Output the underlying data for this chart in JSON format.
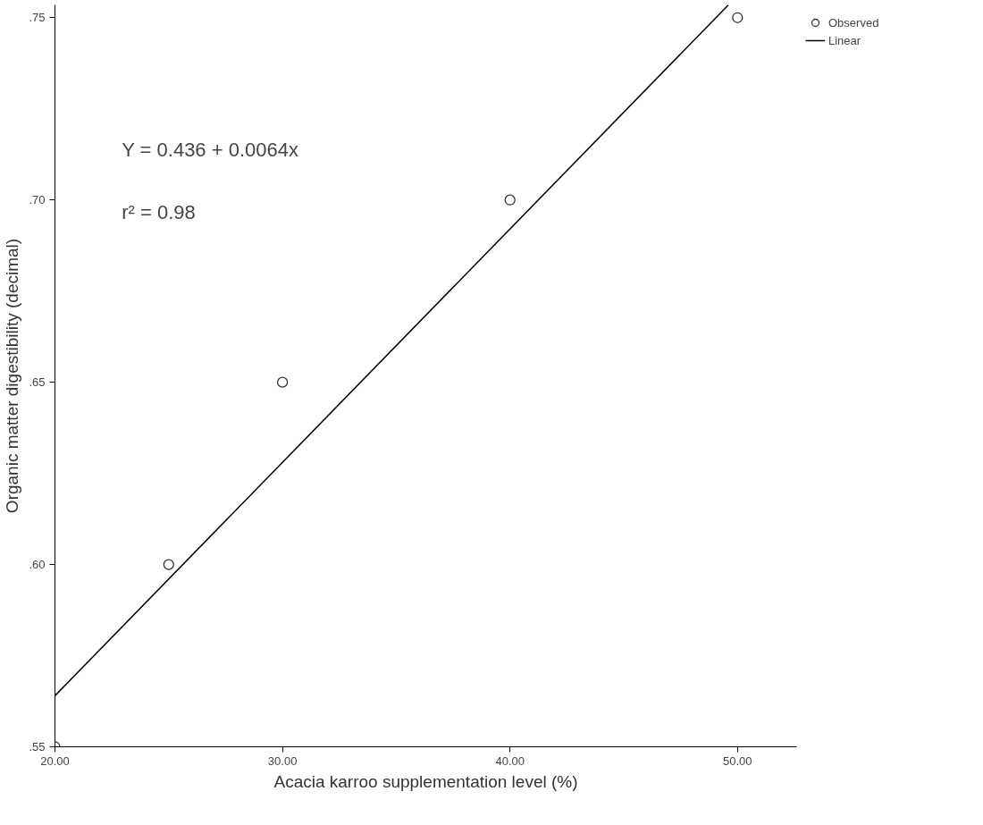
{
  "chart_data": {
    "type": "scatter",
    "xlabel": "Acacia karroo supplementation level (%)",
    "ylabel": "Organic matter digestibility (decimal)",
    "annotations": [
      "Y = 0.436 + 0.0064x",
      "r² = 0.98"
    ],
    "x": [
      20,
      25,
      30,
      40,
      50
    ],
    "series": [
      {
        "name": "Observed",
        "color": "#333333",
        "marker": "circle",
        "values": [
          0.55,
          0.6,
          0.65,
          0.7,
          0.75
        ]
      },
      {
        "name": "Linear",
        "type": "line",
        "color": "#000000",
        "x": [
          20,
          49.6
        ],
        "values": [
          0.564,
          0.7535
        ]
      }
    ],
    "xlim": [
      20,
      52.6
    ],
    "ylim": [
      0.55,
      0.7535
    ],
    "xticks": [
      {
        "value": 20,
        "label": "20.00"
      },
      {
        "value": 30,
        "label": "30.00"
      },
      {
        "value": 40,
        "label": "40.00"
      },
      {
        "value": 50,
        "label": "50.00"
      }
    ],
    "yticks": [
      {
        "value": 0.55,
        "label": ".55"
      },
      {
        "value": 0.6,
        "label": ".60"
      },
      {
        "value": 0.65,
        "label": ".65"
      },
      {
        "value": 0.7,
        "label": ".70"
      },
      {
        "value": 0.75,
        "label": ".75"
      }
    ],
    "grid": false,
    "legend": "top right",
    "line_style": "solid"
  }
}
